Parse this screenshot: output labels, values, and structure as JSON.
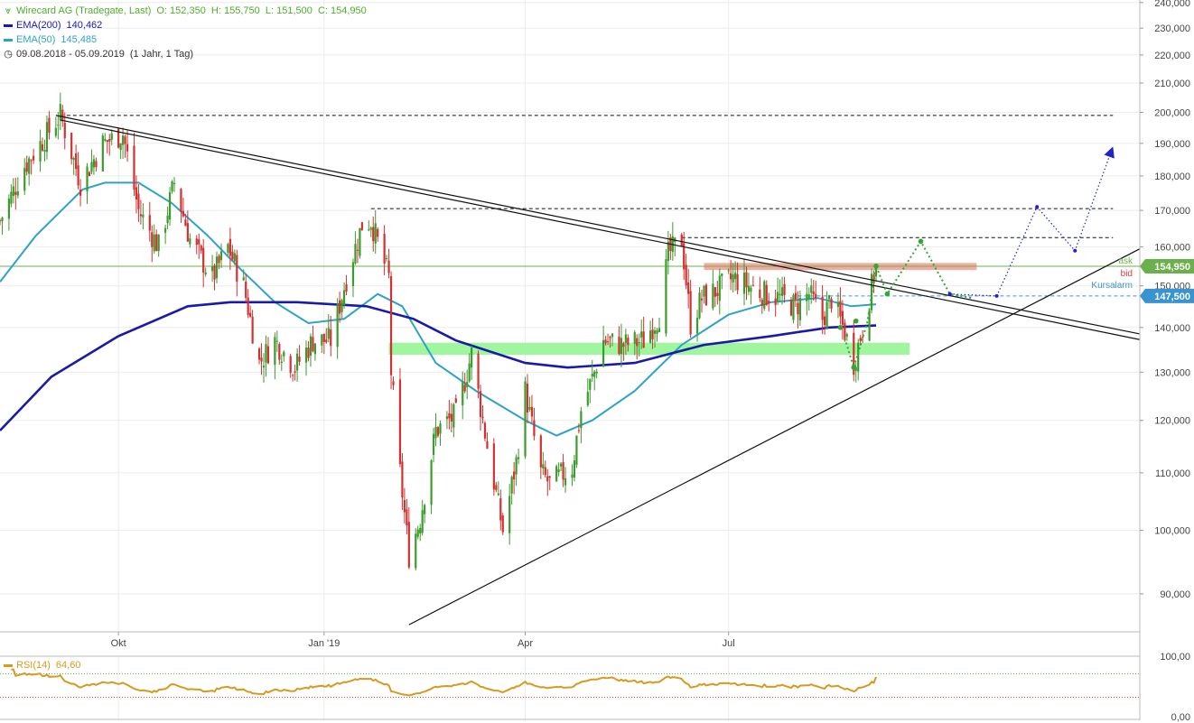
{
  "legend": {
    "title": "Wirecard AG (Tradegate, Last)",
    "ohlc": "O: 152,350  H: 155,750  L: 151,500  C: 154,950",
    "ema200_label": "EMA(200)",
    "ema200_value": "140,462",
    "ema50_label": "EMA(50)",
    "ema50_value": "145,485",
    "period": "09.08.2018 - 05.09.2019",
    "interval": "(1 Jahr, 1 Tag)",
    "title_color": "#4caf2a",
    "ema200_color": "#1a1aa8",
    "ema50_color": "#2ea3c6"
  },
  "rsi_legend": {
    "label": "RSI(14)",
    "value": "64,60",
    "color": "#d69a1e"
  },
  "price_tags": {
    "ask_label": "ask",
    "bid_label": "bid",
    "alarm_label": "Kursalarm",
    "last_value": "154,950",
    "alarm_value": "147,500",
    "last_color": "#6ab04c",
    "alarm_color": "#3a93d1",
    "bid_color": "#e03a3a"
  },
  "chart_data": {
    "type": "candlestick",
    "title": "Wirecard AG (Tradegate, Last)",
    "y_axis": {
      "scale": "log",
      "ticks": [
        90,
        100,
        110,
        120,
        130,
        140,
        150,
        160,
        170,
        180,
        190,
        200,
        210,
        220,
        230,
        240
      ],
      "tick_labels": [
        "90,000",
        "100,000",
        "110,000",
        "120,000",
        "130,000",
        "140,000",
        "150,000",
        "160,000",
        "170,000",
        "180,000",
        "190,000",
        "200,000",
        "210,000",
        "220,000",
        "230,000",
        "240,000"
      ],
      "range": [
        84.5,
        241
      ]
    },
    "x_axis": {
      "range": [
        "2018-08-09",
        "2020-01-01"
      ],
      "ticks": [
        {
          "date": "2018-10-01",
          "label": "Okt"
        },
        {
          "date": "2019-01-01",
          "label": "Jan '19"
        },
        {
          "date": "2019-04-01",
          "label": "Apr"
        },
        {
          "date": "2019-07-01",
          "label": "Jul"
        }
      ]
    },
    "anchors": [
      [
        "2018-08-09",
        167
      ],
      [
        "2018-08-20",
        183
      ],
      [
        "2018-09-03",
        197
      ],
      [
        "2018-09-05",
        199
      ],
      [
        "2018-09-14",
        178
      ],
      [
        "2018-09-24",
        190
      ],
      [
        "2018-10-03",
        193
      ],
      [
        "2018-10-10",
        170
      ],
      [
        "2018-10-19",
        160
      ],
      [
        "2018-10-26",
        178
      ],
      [
        "2018-11-02",
        162
      ],
      [
        "2018-11-12",
        152
      ],
      [
        "2018-11-19",
        160
      ],
      [
        "2018-11-26",
        150
      ],
      [
        "2018-12-03",
        132
      ],
      [
        "2018-12-10",
        137
      ],
      [
        "2018-12-19",
        131
      ],
      [
        "2018-12-27",
        137
      ],
      [
        "2019-01-04",
        137
      ],
      [
        "2019-01-11",
        152
      ],
      [
        "2019-01-18",
        166
      ],
      [
        "2019-01-22",
        167
      ],
      [
        "2019-01-30",
        152
      ],
      [
        "2019-01-31",
        130
      ],
      [
        "2019-02-04",
        110
      ],
      [
        "2019-02-08",
        96
      ],
      [
        "2019-02-13",
        102
      ],
      [
        "2019-02-20",
        118
      ],
      [
        "2019-03-01",
        121
      ],
      [
        "2019-03-08",
        134
      ],
      [
        "2019-03-15",
        115
      ],
      [
        "2019-03-22",
        100
      ],
      [
        "2019-03-28",
        112
      ],
      [
        "2019-04-01",
        126
      ],
      [
        "2019-04-08",
        110
      ],
      [
        "2019-04-12",
        108
      ],
      [
        "2019-04-22",
        111
      ],
      [
        "2019-04-26",
        122
      ],
      [
        "2019-05-02",
        130
      ],
      [
        "2019-05-06",
        137
      ],
      [
        "2019-05-15",
        136
      ],
      [
        "2019-05-24",
        137
      ],
      [
        "2019-05-31",
        143
      ],
      [
        "2019-06-04",
        158
      ],
      [
        "2019-06-10",
        162
      ],
      [
        "2019-06-14",
        141
      ],
      [
        "2019-06-19",
        147
      ],
      [
        "2019-06-26",
        149
      ],
      [
        "2019-07-03",
        152
      ],
      [
        "2019-07-10",
        150
      ],
      [
        "2019-07-17",
        148
      ],
      [
        "2019-07-24",
        147
      ],
      [
        "2019-07-31",
        145
      ],
      [
        "2019-08-06",
        148
      ],
      [
        "2019-08-12",
        142
      ],
      [
        "2019-08-16",
        147
      ],
      [
        "2019-08-22",
        139
      ],
      [
        "2019-08-26",
        132
      ],
      [
        "2019-08-30",
        140
      ],
      [
        "2019-09-05",
        154.95
      ]
    ],
    "ema200": [
      [
        "2018-08-09",
        118
      ],
      [
        "2018-09-01",
        129
      ],
      [
        "2018-10-01",
        138
      ],
      [
        "2018-11-01",
        145
      ],
      [
        "2018-11-20",
        146
      ],
      [
        "2018-12-20",
        146
      ],
      [
        "2019-01-20",
        145
      ],
      [
        "2019-02-10",
        142
      ],
      [
        "2019-03-01",
        137
      ],
      [
        "2019-04-01",
        132
      ],
      [
        "2019-04-20",
        131
      ],
      [
        "2019-05-20",
        132
      ],
      [
        "2019-06-20",
        136
      ],
      [
        "2019-07-20",
        138
      ],
      [
        "2019-08-15",
        140
      ],
      [
        "2019-09-05",
        140.462
      ]
    ],
    "ema50": [
      [
        "2018-08-09",
        151
      ],
      [
        "2018-08-25",
        163
      ],
      [
        "2018-09-15",
        176
      ],
      [
        "2018-09-25",
        178
      ],
      [
        "2018-10-10",
        178
      ],
      [
        "2018-10-25",
        172
      ],
      [
        "2018-11-10",
        163
      ],
      [
        "2018-11-25",
        154
      ],
      [
        "2018-12-10",
        146
      ],
      [
        "2018-12-25",
        141
      ],
      [
        "2019-01-10",
        142
      ],
      [
        "2019-01-25",
        148
      ],
      [
        "2019-02-05",
        145
      ],
      [
        "2019-02-20",
        132
      ],
      [
        "2019-03-10",
        126
      ],
      [
        "2019-04-01",
        120
      ],
      [
        "2019-04-15",
        117
      ],
      [
        "2019-05-01",
        120
      ],
      [
        "2019-05-20",
        126
      ],
      [
        "2019-06-10",
        136
      ],
      [
        "2019-07-01",
        143
      ],
      [
        "2019-07-20",
        146
      ],
      [
        "2019-08-10",
        147
      ],
      [
        "2019-08-25",
        145
      ],
      [
        "2019-09-05",
        145.485
      ]
    ],
    "annotations": {
      "dashed_levels": [
        {
          "value": 199,
          "from": "2018-09-05",
          "to": "2019-12-20"
        },
        {
          "value": 170.5,
          "from": "2019-01-22",
          "to": "2019-12-20"
        },
        {
          "value": 162.5,
          "from": "2019-06-10",
          "to": "2019-12-20"
        }
      ],
      "last_price_line": 154.95,
      "alarm_line": 147.5,
      "resistance_zone": {
        "from": "2019-06-20",
        "to": "2019-10-20",
        "low": 154,
        "high": 155.8,
        "color": "#f4a59c"
      },
      "support_zone": {
        "from": "2019-01-30",
        "to": "2019-09-20",
        "low": 133.8,
        "high": 136.5,
        "color": "#9af59a"
      },
      "trendlines": [
        {
          "from": [
            "2018-09-03",
            199
          ],
          "to": [
            "2020-01-01",
            138.5
          ]
        },
        {
          "from": [
            "2018-09-05",
            197.5
          ],
          "to": [
            "2020-01-01",
            137.2
          ]
        },
        {
          "from": [
            "2019-02-08",
            85.5
          ],
          "to": [
            "2020-01-01",
            159.5
          ]
        }
      ],
      "green_path": [
        [
          "2019-08-22",
          137.5
        ],
        [
          "2019-08-26",
          131
        ],
        [
          "2019-09-01",
          141
        ],
        [
          "2019-09-05",
          155
        ],
        [
          "2019-09-10",
          148
        ],
        [
          "2019-09-25",
          161.5
        ],
        [
          "2019-10-08",
          148
        ],
        [
          "2019-10-18",
          147
        ]
      ],
      "green_markers": [
        [
          "2019-08-26",
          131
        ],
        [
          "2019-08-20",
          140
        ],
        [
          "2019-08-27",
          141.5
        ],
        [
          "2019-09-05",
          155
        ],
        [
          "2019-09-10",
          148
        ],
        [
          "2019-09-25",
          161.5
        ]
      ],
      "blue_path": [
        [
          "2019-10-08",
          148
        ],
        [
          "2019-10-29",
          147.5
        ],
        [
          "2019-11-16",
          171
        ],
        [
          "2019-12-03",
          159
        ],
        [
          "2019-12-20",
          189
        ]
      ]
    },
    "rsi": {
      "label": "RSI(14)",
      "value": 64.6,
      "levels": [
        70,
        30
      ],
      "ticks": [
        "100,00",
        "0,00"
      ]
    }
  }
}
